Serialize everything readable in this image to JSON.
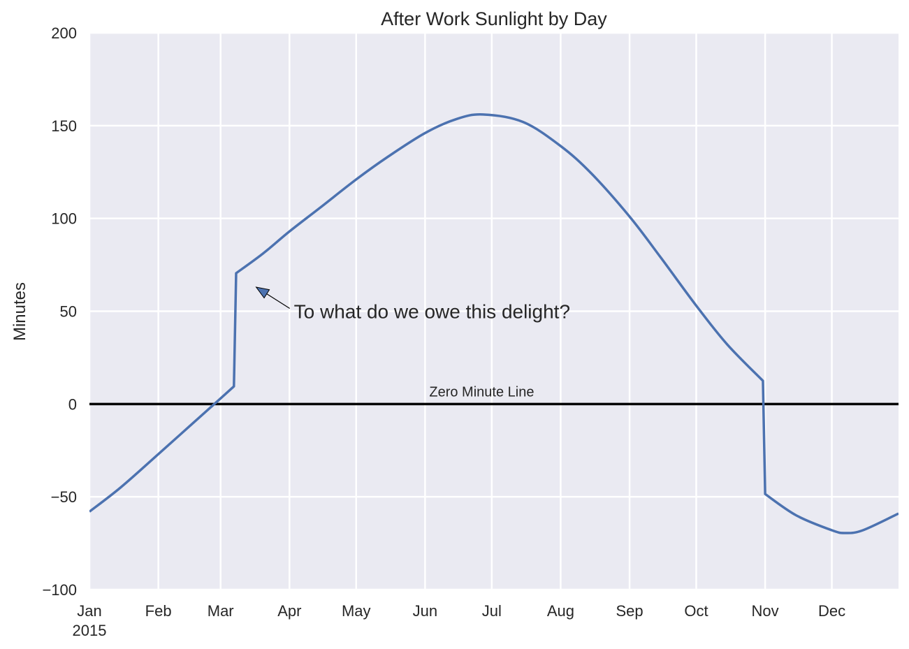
{
  "chart_data": {
    "type": "line",
    "title": "After Work Sunlight by Day",
    "xlabel": "",
    "ylabel": "Minutes",
    "xlim": [
      "2015-01-01",
      "2015-12-31"
    ],
    "ylim": [
      -100,
      200
    ],
    "grid": true,
    "yticks": [
      -100,
      -50,
      0,
      50,
      100,
      150,
      200
    ],
    "ytick_labels": [
      "−100",
      "−50",
      "0",
      "50",
      "100",
      "150",
      "200"
    ],
    "xticks": [
      "2015-01-01",
      "2015-02-01",
      "2015-03-01",
      "2015-04-01",
      "2015-05-01",
      "2015-06-01",
      "2015-07-01",
      "2015-08-01",
      "2015-09-01",
      "2015-10-01",
      "2015-11-01",
      "2015-12-01"
    ],
    "xtick_labels": [
      "Jan",
      "Feb",
      "Mar",
      "Apr",
      "May",
      "Jun",
      "Jul",
      "Aug",
      "Sep",
      "Oct",
      "Nov",
      "Dec"
    ],
    "xtick_year_label": "2015",
    "series": [
      {
        "color": "#4c72b0",
        "x": [
          "2015-01-01",
          "2015-01-15",
          "2015-02-01",
          "2015-02-15",
          "2015-03-01",
          "2015-03-07",
          "2015-03-08",
          "2015-03-20",
          "2015-04-01",
          "2015-04-15",
          "2015-05-01",
          "2015-05-15",
          "2015-06-01",
          "2015-06-15",
          "2015-06-27",
          "2015-07-15",
          "2015-08-01",
          "2015-08-15",
          "2015-09-01",
          "2015-09-15",
          "2015-10-01",
          "2015-10-15",
          "2015-10-31",
          "2015-11-01",
          "2015-11-15",
          "2015-12-01",
          "2015-12-07",
          "2015-12-15",
          "2015-12-31"
        ],
        "y": [
          -58,
          -45,
          -27,
          -12,
          3,
          9.5,
          70.5,
          81,
          93,
          106,
          121,
          133,
          146,
          153.5,
          156,
          152,
          139,
          124,
          101,
          79,
          53,
          32,
          12.5,
          -48.5,
          -60,
          -68,
          -69.5,
          -68,
          -59
        ]
      }
    ],
    "hlines": [
      {
        "y": 0,
        "color": "#000000",
        "label": "Zero Minute Line",
        "label_x": "2015-06-01",
        "label_y": 4
      }
    ],
    "annotations": [
      {
        "text": "To what do we owe this delight?",
        "text_x": "2015-04-03",
        "text_y": 50,
        "arrow_x": "2015-03-17",
        "arrow_y": 63
      }
    ]
  }
}
